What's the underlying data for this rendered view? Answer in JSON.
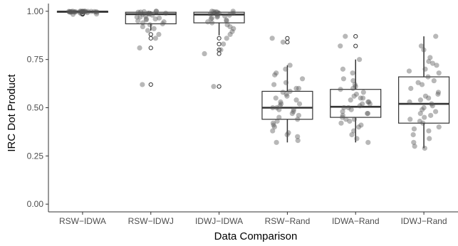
{
  "chart_data": {
    "type": "box",
    "xlabel": "Data Comparison",
    "ylabel": "IRC Dot Product",
    "ylim": [
      -0.04,
      1.04
    ],
    "yticks": [
      0.0,
      0.25,
      0.5,
      0.75,
      1.0
    ],
    "ytick_labels": [
      "0.00",
      "0.25",
      "0.50",
      "0.75",
      "1.00"
    ],
    "grid": false,
    "colors": {
      "box_fill": "#ffffff",
      "box_stroke": "#333333",
      "point": "#555555",
      "axis": "#333333"
    },
    "categories": [
      "RSW−IDWA",
      "RSW−IDWJ",
      "IDWJ−IDWA",
      "RSW−Rand",
      "IDWA−Rand",
      "IDWJ−Rand"
    ],
    "boxes": [
      {
        "min": 0.985,
        "q1": 0.995,
        "median": 0.998,
        "q3": 1.0,
        "max": 1.0,
        "outliers": [
          0.988,
          0.986,
          0.984
        ]
      },
      {
        "min": 0.9,
        "q1": 0.935,
        "median": 0.985,
        "q3": 0.995,
        "max": 1.0,
        "outliers": [
          0.88,
          0.86,
          0.81,
          0.62
        ]
      },
      {
        "min": 0.875,
        "q1": 0.94,
        "median": 0.983,
        "q3": 0.995,
        "max": 1.0,
        "outliers": [
          0.86,
          0.83,
          0.8,
          0.78,
          0.61
        ]
      },
      {
        "min": 0.32,
        "q1": 0.44,
        "median": 0.5,
        "q3": 0.585,
        "max": 0.72,
        "outliers": [
          0.86,
          0.84
        ]
      },
      {
        "min": 0.32,
        "q1": 0.45,
        "median": 0.505,
        "q3": 0.595,
        "max": 0.75,
        "outliers": [
          0.87,
          0.82
        ]
      },
      {
        "min": 0.29,
        "q1": 0.42,
        "median": 0.52,
        "q3": 0.66,
        "max": 0.87,
        "outliers": []
      }
    ],
    "points": [
      [
        0.998,
        1.0,
        0.995,
        0.997,
        1.0,
        0.999,
        0.996,
        0.998,
        1.0,
        0.994,
        0.997,
        0.999,
        0.993,
        0.998,
        1.0,
        0.996,
        0.999,
        0.997,
        0.995,
        0.998,
        1.0,
        0.999,
        0.997,
        0.996,
        0.998,
        0.988,
        0.986,
        0.984,
        1.0,
        0.999
      ],
      [
        1.0,
        0.998,
        0.996,
        0.99,
        0.99,
        0.985,
        0.98,
        0.975,
        0.97,
        0.965,
        0.96,
        0.955,
        0.95,
        0.945,
        0.94,
        0.935,
        0.93,
        0.92,
        0.91,
        0.9,
        0.88,
        0.86,
        0.81,
        0.62,
        0.985,
        0.995,
        0.97,
        0.99,
        1.0,
        0.96
      ],
      [
        1.0,
        0.998,
        0.996,
        0.99,
        0.985,
        0.98,
        0.975,
        0.97,
        0.965,
        0.96,
        0.95,
        0.945,
        0.94,
        0.93,
        0.92,
        0.91,
        0.895,
        0.88,
        0.86,
        0.83,
        0.8,
        0.78,
        0.61,
        0.99,
        0.985,
        0.997,
        0.975,
        0.955,
        1.0,
        0.99
      ],
      [
        0.86,
        0.84,
        0.72,
        0.7,
        0.67,
        0.65,
        0.63,
        0.6,
        0.585,
        0.57,
        0.55,
        0.54,
        0.52,
        0.51,
        0.5,
        0.5,
        0.49,
        0.48,
        0.47,
        0.46,
        0.45,
        0.44,
        0.43,
        0.42,
        0.4,
        0.38,
        0.37,
        0.35,
        0.33,
        0.32,
        0.36,
        0.41,
        0.53,
        0.56,
        0.62,
        0.58,
        0.49,
        0.52,
        0.6,
        0.68
      ],
      [
        0.87,
        0.82,
        0.75,
        0.7,
        0.68,
        0.65,
        0.62,
        0.6,
        0.595,
        0.58,
        0.56,
        0.55,
        0.54,
        0.53,
        0.52,
        0.51,
        0.5,
        0.49,
        0.48,
        0.47,
        0.46,
        0.45,
        0.44,
        0.43,
        0.42,
        0.4,
        0.38,
        0.36,
        0.34,
        0.32,
        0.57,
        0.64,
        0.5,
        0.47,
        0.55,
        0.61,
        0.53,
        0.41,
        0.44,
        0.52
      ],
      [
        0.87,
        0.82,
        0.8,
        0.76,
        0.73,
        0.72,
        0.7,
        0.68,
        0.66,
        0.64,
        0.62,
        0.6,
        0.58,
        0.56,
        0.55,
        0.54,
        0.52,
        0.51,
        0.5,
        0.49,
        0.48,
        0.46,
        0.44,
        0.43,
        0.42,
        0.4,
        0.38,
        0.36,
        0.34,
        0.32,
        0.3,
        0.29,
        0.63,
        0.69,
        0.57,
        0.45,
        0.53,
        0.47,
        0.39,
        0.74
      ]
    ]
  }
}
